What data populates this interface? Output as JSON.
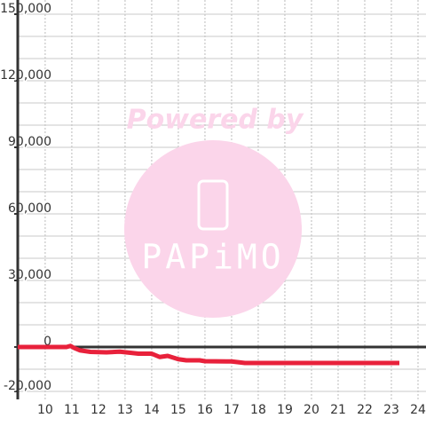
{
  "chart_data": {
    "type": "line",
    "x": [
      8.97,
      10.8,
      10.95,
      11.1,
      11.3,
      11.7,
      12.3,
      12.8,
      13.2,
      13.5,
      14.0,
      14.3,
      14.6,
      15.0,
      15.3,
      15.8,
      16.0,
      17.0,
      17.5,
      18.0,
      23.3
    ],
    "series": [
      {
        "color": "#e8213b",
        "values": [
          0,
          0,
          500,
          -500,
          -1500,
          -2200,
          -2400,
          -2100,
          -2600,
          -3000,
          -3000,
          -4500,
          -4000,
          -5500,
          -6000,
          -6000,
          -6400,
          -6500,
          -7200,
          -7200,
          -7200
        ]
      }
    ],
    "xlim": [
      8.97,
      24.3
    ],
    "ylim": [
      -23600,
      156400
    ],
    "xticks": [
      10,
      11,
      12,
      13,
      14,
      15,
      16,
      17,
      18,
      19,
      20,
      21,
      22,
      23,
      24
    ],
    "yticks": [
      {
        "value": -20000,
        "label": "-20,000"
      },
      {
        "value": 0,
        "label": "0"
      },
      {
        "value": 30000,
        "label": "30,000"
      },
      {
        "value": 60000,
        "label": "60,000"
      },
      {
        "value": 90000,
        "label": "90,000"
      },
      {
        "value": 120000,
        "label": "120,000"
      },
      {
        "value": 150000,
        "label": "150,000"
      }
    ],
    "y_gridlines": [
      -20000,
      -10000,
      10000,
      20000,
      30000,
      40000,
      50000,
      60000,
      70000,
      80000,
      90000,
      100000,
      110000,
      120000,
      130000,
      140000,
      150000
    ],
    "grid": true,
    "watermark": {
      "caption": "Powered by",
      "logo": "PAPiMO"
    }
  }
}
